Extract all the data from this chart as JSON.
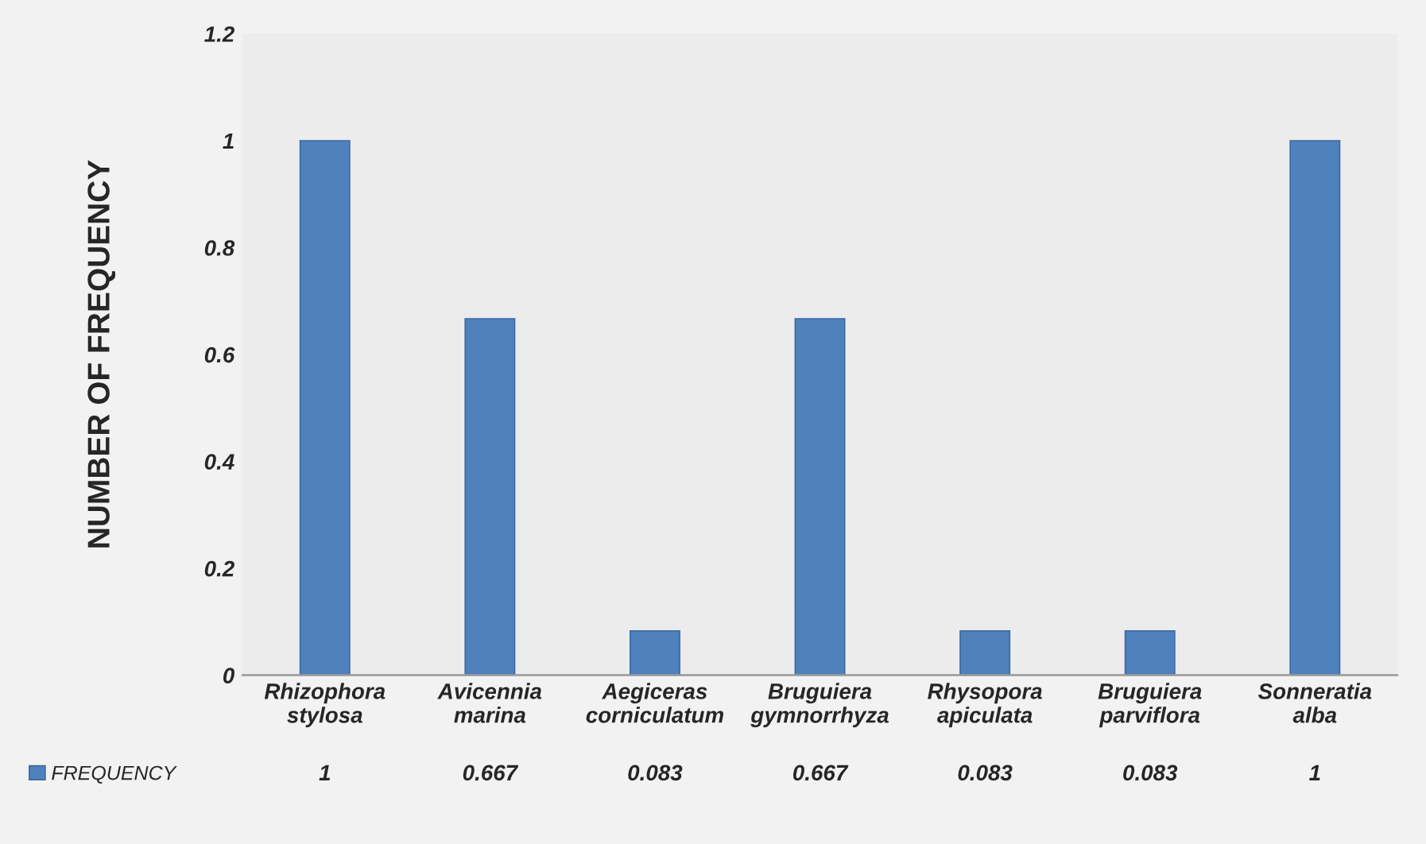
{
  "chart_data": {
    "type": "bar",
    "ylabel": "NUMBER OF FREQUENCY",
    "categories": [
      "Rhizophora\nstylosa",
      "Avicennia\nmarina",
      "Aegiceras\ncorniculatum",
      "Bruguiera\ngymnorrhyza",
      "Rhysopora\napiculata",
      "Bruguiera\nparviflora",
      "Sonneratia\nalba"
    ],
    "series": [
      {
        "name": "FREQUENCY",
        "color": "#4f81bd",
        "values": [
          1,
          0.667,
          0.083,
          0.667,
          0.083,
          0.083,
          1
        ]
      }
    ],
    "ylim": [
      0,
      1.2
    ],
    "yticks": [
      0,
      0.2,
      0.4,
      0.6,
      0.8,
      1,
      1.2
    ],
    "data_labels": true,
    "legend": "bottom left",
    "grid": false
  }
}
